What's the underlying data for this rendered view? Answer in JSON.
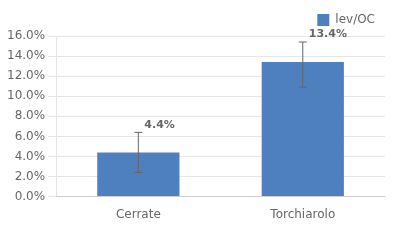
{
  "chart_data": {
    "type": "bar",
    "categories": [
      "Cerrate",
      "Torchiarolo"
    ],
    "series": [
      {
        "name": "lev/OC",
        "color": "#4E7FBF",
        "values": [
          0.044,
          0.134
        ],
        "value_labels": [
          "4.4%",
          "13.4%"
        ],
        "error_upper": [
          0.02,
          0.02
        ],
        "error_lower": [
          0.02,
          0.025
        ]
      }
    ],
    "ylim": [
      0,
      0.16
    ],
    "yticks": [
      {
        "value": 0.0,
        "label": "0.0%"
      },
      {
        "value": 0.02,
        "label": "2.0%"
      },
      {
        "value": 0.04,
        "label": "4.0%"
      },
      {
        "value": 0.06,
        "label": "6.0%"
      },
      {
        "value": 0.08,
        "label": "8.0%"
      },
      {
        "value": 0.1,
        "label": "10.0%"
      },
      {
        "value": 0.12,
        "label": "12.0%"
      },
      {
        "value": 0.14,
        "label": "14.0%"
      },
      {
        "value": 0.16,
        "label": "16.0%"
      }
    ],
    "grid": true,
    "legend": "upper right",
    "data_labels": true
  }
}
